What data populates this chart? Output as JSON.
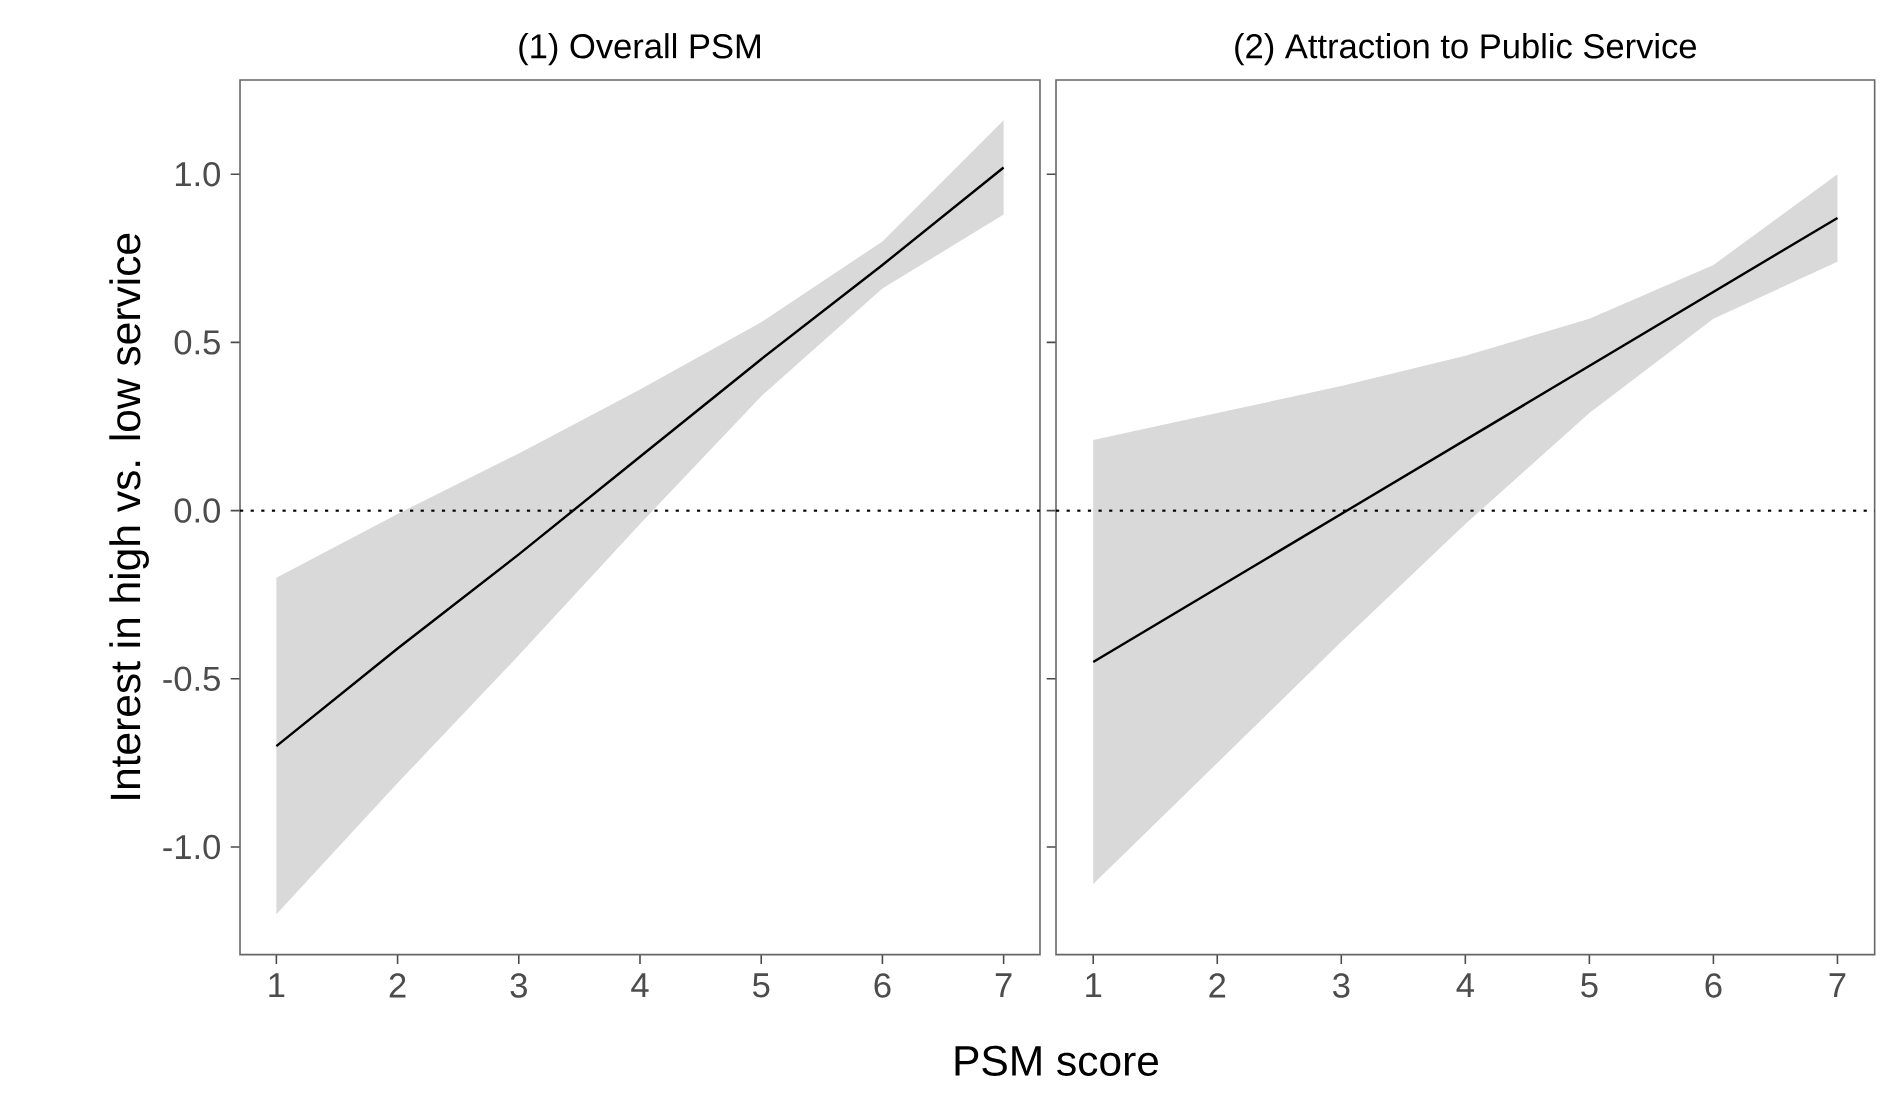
{
  "chart_data": [
    {
      "type": "line",
      "title": "(1) Overall PSM",
      "xlabel": "PSM score",
      "ylabel": "Interest in high vs. low service",
      "x": [
        1,
        2,
        3,
        4,
        5,
        6,
        7
      ],
      "series": [
        {
          "color": "#000000",
          "values": [
            -0.7,
            -0.41,
            -0.13,
            0.16,
            0.45,
            0.73,
            1.02
          ],
          "lower": [
            -1.2,
            -0.81,
            -0.43,
            -0.04,
            0.34,
            0.66,
            0.88
          ],
          "upper": [
            -0.2,
            -0.01,
            0.17,
            0.36,
            0.56,
            0.8,
            1.16
          ]
        }
      ],
      "xlim": [
        0.7,
        7.3
      ],
      "ylim": [
        -1.32,
        1.28
      ],
      "xticks": [
        1,
        2,
        3,
        4,
        5,
        6,
        7
      ],
      "yticks": [
        {
          "value": -1,
          "label": "-1.0"
        },
        {
          "value": -0.5,
          "label": "-0.5"
        },
        {
          "value": 0,
          "label": "0.0"
        },
        {
          "value": 0.5,
          "label": "0.5"
        },
        {
          "value": 1,
          "label": "1.0"
        }
      ],
      "ref_lines": [
        {
          "axis": "y",
          "value": 0,
          "line_style": "dotted"
        }
      ],
      "grid": false
    },
    {
      "type": "line",
      "title": "(2) Attraction to Public Service",
      "x": [
        1,
        2,
        3,
        4,
        5,
        6,
        7
      ],
      "series": [
        {
          "color": "#000000",
          "values": [
            -0.45,
            -0.23,
            -0.01,
            0.21,
            0.43,
            0.65,
            0.87
          ],
          "lower": [
            -1.11,
            -0.75,
            -0.39,
            -0.04,
            0.29,
            0.57,
            0.74
          ],
          "upper": [
            0.21,
            0.29,
            0.37,
            0.46,
            0.57,
            0.73,
            1.0
          ]
        }
      ],
      "xlim": [
        0.7,
        7.3
      ],
      "ylim": [
        -1.32,
        1.28
      ],
      "xticks": [
        1,
        2,
        3,
        4,
        5,
        6,
        7
      ],
      "yticks": [
        {
          "value": -1,
          "label": null
        },
        {
          "value": -0.5,
          "label": null
        },
        {
          "value": 0,
          "label": null
        },
        {
          "value": 0.5,
          "label": null
        },
        {
          "value": 1,
          "label": null
        }
      ],
      "tick_labels": "x",
      "ref_lines": [
        {
          "axis": "y",
          "value": 0,
          "line_style": "dotted"
        }
      ],
      "grid": false
    }
  ]
}
